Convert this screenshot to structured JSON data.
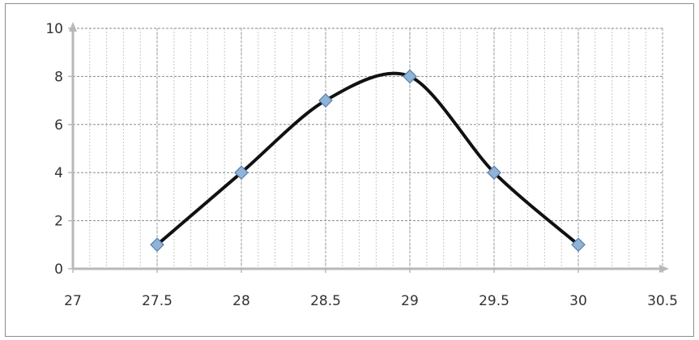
{
  "chart_data": {
    "type": "scatter",
    "smooth_line": true,
    "title": "",
    "xlabel": "",
    "ylabel": "",
    "xlim": [
      27,
      30.5
    ],
    "ylim": [
      0,
      10
    ],
    "x_ticks": [
      27,
      27.5,
      28,
      28.5,
      29,
      29.5,
      30,
      30.5
    ],
    "x_tick_labels": [
      "27",
      "27.5",
      "28",
      "28.5",
      "29",
      "29.5",
      "30",
      "30.5"
    ],
    "y_ticks": [
      0,
      2,
      4,
      6,
      8,
      10
    ],
    "y_tick_labels": [
      "0",
      "2",
      "4",
      "6",
      "8",
      "10"
    ],
    "grid": true,
    "legend": "none",
    "series": [
      {
        "x": [
          27.5,
          28,
          28.5,
          29,
          29.5,
          30
        ],
        "y": [
          1,
          4,
          7,
          8,
          4,
          1
        ],
        "line_color": "#111111",
        "marker": "diamond",
        "marker_color": "#8eb4d8"
      }
    ]
  }
}
